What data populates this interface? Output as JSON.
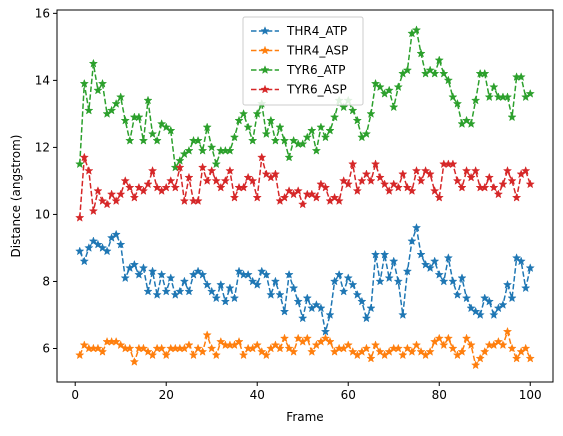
{
  "chart_data": {
    "type": "line",
    "xlabel": "Frame",
    "ylabel": "Distance (angstrom)",
    "xlim": [
      -4,
      105
    ],
    "ylim": [
      5.0,
      16.1
    ],
    "x_ticks": [
      0,
      20,
      40,
      60,
      80,
      100
    ],
    "y_ticks": [
      6,
      8,
      10,
      12,
      14,
      16
    ],
    "grid": false,
    "legend_position": "top-center",
    "line_style": "dashed",
    "marker": "star",
    "x": [
      1,
      2,
      3,
      4,
      5,
      6,
      7,
      8,
      9,
      10,
      11,
      12,
      13,
      14,
      15,
      16,
      17,
      18,
      19,
      20,
      21,
      22,
      23,
      24,
      25,
      26,
      27,
      28,
      29,
      30,
      31,
      32,
      33,
      34,
      35,
      36,
      37,
      38,
      39,
      40,
      41,
      42,
      43,
      44,
      45,
      46,
      47,
      48,
      49,
      50,
      51,
      52,
      53,
      54,
      55,
      56,
      57,
      58,
      59,
      60,
      61,
      62,
      63,
      64,
      65,
      66,
      67,
      68,
      69,
      70,
      71,
      72,
      73,
      74,
      75,
      76,
      77,
      78,
      79,
      80,
      81,
      82,
      83,
      84,
      85,
      86,
      87,
      88,
      89,
      90,
      91,
      92,
      93,
      94,
      95,
      96,
      97,
      98,
      99,
      100
    ],
    "series": [
      {
        "name": "THR4_ATP",
        "color": "#1f77b4",
        "values": [
          8.9,
          8.6,
          9.0,
          9.2,
          9.1,
          9.0,
          8.9,
          9.3,
          9.4,
          9.1,
          8.1,
          8.4,
          8.5,
          8.2,
          8.4,
          7.7,
          8.3,
          7.6,
          8.2,
          7.7,
          8.1,
          7.6,
          7.7,
          8.0,
          7.7,
          8.2,
          8.3,
          8.2,
          7.9,
          7.7,
          7.5,
          7.9,
          7.4,
          7.8,
          7.5,
          8.3,
          8.2,
          8.2,
          8.0,
          7.9,
          8.3,
          8.2,
          7.6,
          8.0,
          7.6,
          7.1,
          8.2,
          7.8,
          7.4,
          6.9,
          7.5,
          7.2,
          7.3,
          7.2,
          6.5,
          7.0,
          8.0,
          8.2,
          7.7,
          8.1,
          7.9,
          7.6,
          7.4,
          6.9,
          7.2,
          8.8,
          8.0,
          8.8,
          8.1,
          8.6,
          8.0,
          7.0,
          8.3,
          9.2,
          9.6,
          8.8,
          8.5,
          8.4,
          8.6,
          8.2,
          8.0,
          8.7,
          8.0,
          7.6,
          8.1,
          7.5,
          7.2,
          7.1,
          7.0,
          7.5,
          7.4,
          7.0,
          7.2,
          7.3,
          7.9,
          7.5,
          8.7,
          8.6,
          7.8,
          8.4
        ]
      },
      {
        "name": "THR4_ASP",
        "color": "#ff7f0e",
        "values": [
          5.8,
          6.1,
          6.0,
          6.0,
          6.0,
          5.9,
          6.2,
          6.2,
          6.2,
          6.1,
          6.0,
          6.0,
          5.6,
          6.0,
          6.0,
          5.9,
          5.8,
          6.0,
          6.0,
          5.8,
          6.0,
          6.0,
          6.0,
          6.0,
          6.1,
          5.8,
          6.0,
          5.9,
          6.4,
          6.0,
          5.8,
          6.2,
          6.1,
          6.1,
          6.1,
          6.2,
          5.8,
          6.0,
          6.0,
          6.1,
          5.9,
          5.8,
          6.0,
          6.1,
          6.0,
          6.3,
          6.0,
          5.9,
          6.3,
          6.2,
          6.3,
          5.9,
          6.1,
          6.2,
          6.3,
          6.2,
          5.9,
          6.0,
          6.0,
          6.1,
          5.9,
          5.8,
          5.9,
          6.0,
          5.7,
          6.1,
          5.9,
          5.8,
          5.9,
          6.0,
          6.0,
          5.8,
          6.0,
          5.9,
          6.1,
          5.9,
          5.8,
          5.9,
          6.2,
          6.3,
          6.1,
          6.3,
          6.0,
          5.8,
          5.9,
          6.3,
          6.1,
          5.5,
          5.7,
          5.9,
          6.1,
          6.1,
          6.2,
          6.1,
          6.5,
          6.0,
          5.7,
          5.9,
          6.0,
          5.7
        ]
      },
      {
        "name": "TYR6_ATP",
        "color": "#2ca02c",
        "values": [
          11.5,
          13.9,
          13.1,
          14.5,
          13.7,
          13.9,
          13.0,
          13.1,
          13.3,
          13.5,
          12.8,
          12.2,
          12.9,
          12.9,
          12.2,
          13.4,
          12.4,
          12.2,
          12.7,
          12.6,
          12.5,
          11.4,
          11.6,
          11.8,
          11.9,
          12.2,
          12.2,
          11.9,
          12.6,
          12.0,
          11.5,
          11.9,
          11.9,
          11.9,
          12.3,
          12.8,
          13.0,
          12.6,
          12.2,
          13.0,
          13.3,
          12.4,
          12.8,
          12.2,
          12.6,
          12.2,
          11.7,
          12.2,
          12.1,
          12.1,
          12.3,
          12.5,
          11.9,
          12.6,
          12.3,
          12.5,
          12.9,
          13.4,
          13.2,
          13.4,
          13.1,
          12.8,
          12.3,
          12.4,
          13.0,
          13.9,
          13.8,
          13.6,
          13.7,
          13.2,
          13.8,
          14.2,
          14.3,
          15.4,
          15.5,
          14.8,
          14.2,
          14.3,
          14.2,
          14.6,
          14.2,
          14.0,
          13.5,
          13.3,
          12.7,
          12.8,
          12.7,
          13.4,
          14.2,
          14.2,
          13.5,
          13.8,
          13.5,
          13.5,
          13.5,
          12.9,
          14.1,
          14.1,
          13.5,
          13.6
        ]
      },
      {
        "name": "TYR6_ASP",
        "color": "#d62728",
        "values": [
          9.9,
          11.7,
          11.3,
          10.1,
          10.7,
          10.4,
          10.3,
          10.6,
          10.4,
          10.6,
          11.0,
          10.8,
          10.5,
          10.8,
          10.7,
          10.9,
          11.3,
          10.8,
          10.7,
          10.8,
          11.0,
          10.8,
          11.4,
          10.4,
          11.1,
          10.4,
          10.4,
          11.4,
          11.0,
          11.3,
          11.0,
          10.8,
          11.0,
          11.3,
          10.5,
          10.8,
          10.8,
          11.1,
          11.0,
          10.5,
          11.7,
          11.2,
          11.1,
          11.2,
          10.4,
          10.5,
          10.7,
          10.6,
          10.7,
          10.3,
          10.6,
          10.6,
          10.5,
          10.9,
          10.8,
          10.4,
          10.5,
          10.4,
          11.0,
          10.9,
          11.5,
          10.7,
          11.0,
          11.2,
          11.0,
          11.5,
          11.1,
          10.9,
          10.7,
          10.9,
          10.8,
          11.2,
          10.8,
          10.7,
          11.3,
          11.0,
          11.3,
          11.2,
          10.7,
          10.5,
          11.5,
          11.5,
          11.5,
          11.0,
          10.8,
          11.3,
          11.1,
          11.3,
          10.8,
          10.8,
          11.1,
          10.8,
          10.6,
          10.9,
          11.3,
          11.0,
          10.5,
          11.2,
          11.3,
          10.9
        ]
      }
    ]
  }
}
